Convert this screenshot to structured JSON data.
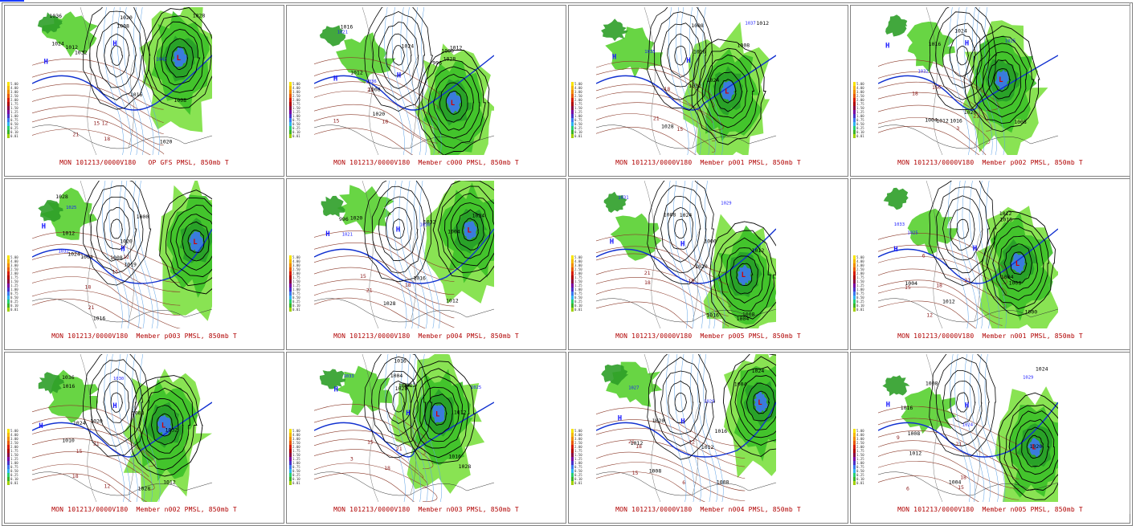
{
  "page": {
    "panels": [
      {
        "caption": "MON 101213/0000V180   OP GFS PMSL, 850mb T"
      },
      {
        "caption": "MON 101213/0000V180  Member c000 PMSL, 850mb T"
      },
      {
        "caption": "MON 101213/0000V180  Member p001 PMSL, 850mb T"
      },
      {
        "caption": "MON 101213/0000V180  Member p002 PMSL, 850mb T"
      },
      {
        "caption": "MON 101213/0000V180  Member p003 PMSL, 850mb T"
      },
      {
        "caption": "MON 101213/0000V180  Member p004 PMSL, 850mb T"
      },
      {
        "caption": "MON 101213/0000V180  Member p005 PMSL, 850mb T"
      },
      {
        "caption": "MON 101213/0000V180  Member n001 PMSL, 850mb T"
      },
      {
        "caption": "MON 101213/0000V180  Member n002 PMSL, 850mb T"
      },
      {
        "caption": "MON 101213/0000V180  Member n003 PMSL, 850mb T"
      },
      {
        "caption": "MON 101213/0000V180  Member n004 PMSL, 850mb T"
      },
      {
        "caption": "MON 101213/0000V180  Member n005 PMSL, 850mb T"
      }
    ],
    "legend": {
      "labels": [
        "5.00",
        "4.00",
        "3.00",
        "2.50",
        "2.00",
        "1.75",
        "1.50",
        "1.25",
        "1.00",
        "0.75",
        "0.50",
        "0.25",
        "0.10",
        "0.01"
      ],
      "colors": [
        "#f7e400",
        "#f5b800",
        "#f08c00",
        "#e85a00",
        "#d61c00",
        "#b00000",
        "#8a0040",
        "#7a00a0",
        "#4a30c8",
        "#3c78f0",
        "#30b4f0",
        "#28d070",
        "#3cb428",
        "#a0d000"
      ]
    },
    "map_labels": [
      [
        "1008",
        "1036",
        "1032",
        "1028",
        "1024",
        "1016",
        "1012",
        "1008",
        "1020",
        "15",
        "18",
        "21",
        "12",
        "H",
        "H",
        "L",
        "1042",
        "1020"
      ],
      [
        "996",
        "1000",
        "1008",
        "1012",
        "1020",
        "1028",
        "1024",
        "1012",
        "1016",
        "15",
        "18",
        "21",
        "H",
        "H",
        "L",
        "1036",
        "1021"
      ],
      [
        "1008",
        "1032",
        "1028",
        "1024",
        "1016",
        "1012",
        "1008",
        "15",
        "18",
        "21",
        "H",
        "H",
        "L",
        "1037",
        "1035"
      ],
      [
        "1016",
        "1012",
        "1024",
        "1020",
        "1008",
        "1004",
        "1016",
        "15",
        "18",
        "21",
        "6",
        "3",
        "H",
        "H",
        "L",
        "1032",
        "1025"
      ],
      [
        "1004",
        "1028",
        "1020",
        "1016",
        "1012",
        "1008",
        "1000",
        "1024",
        "15",
        "18",
        "21",
        "12",
        "H",
        "H",
        "L",
        "1025",
        "1032",
        "1019"
      ],
      [
        "996",
        "1004",
        "1016",
        "1020",
        "1028",
        "1032",
        "1024",
        "1012",
        "15",
        "18",
        "21",
        "H",
        "H",
        "L",
        "1030",
        "1021"
      ],
      [
        "1008",
        "1020",
        "1016",
        "1012",
        "1000",
        "1004",
        "1008",
        "1024",
        "15",
        "18",
        "21",
        "H",
        "H",
        "L",
        "1029",
        "1031"
      ],
      [
        "1004",
        "1012",
        "1016",
        "1008",
        "1000",
        "1004",
        "1012",
        "15",
        "18",
        "21",
        "6",
        "12",
        "H",
        "H",
        "L",
        "1033",
        "1025"
      ],
      [
        "1008",
        "1036",
        "1032",
        "1028",
        "1024",
        "1020",
        "1016",
        "1012",
        "1010",
        "15",
        "18",
        "21",
        "12",
        "H",
        "H",
        "L",
        "1030"
      ],
      [
        "1004",
        "1012",
        "1028",
        "1020",
        "1016",
        "1012",
        "1004",
        "15",
        "18",
        "21",
        "3",
        "H",
        "H",
        "L",
        "1033",
        "1025",
        "1016"
      ],
      [
        "1008",
        "1012",
        "1024",
        "1020",
        "1016",
        "1008",
        "1004",
        "1012",
        "15",
        "18",
        "21",
        "6",
        "12",
        "H",
        "H",
        "L",
        "1027",
        "1029"
      ],
      [
        "1008",
        "1004",
        "1016",
        "1012",
        "1024",
        "1020",
        "1008",
        "15",
        "18",
        "21",
        "6",
        "9",
        "H",
        "H",
        "L",
        "1029",
        "1024"
      ]
    ]
  }
}
